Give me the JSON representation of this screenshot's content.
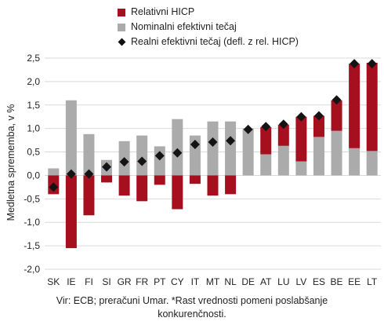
{
  "colors": {
    "relative": "#a50f1e",
    "nominal": "#ababab",
    "real": "#141414",
    "grid": "#d9d9d9"
  },
  "legend": {
    "relative": "Relativni HICP",
    "nominal": "Nominalni efektivni tečaj",
    "real": "Realni efektivni tečaj (defl. z rel. HICP)"
  },
  "note": {
    "line1": "Vir: ECB; preračuni Umar. *Rast vrednosti pomeni poslabšanje",
    "line2": "konkurenčnosti."
  },
  "chart_data": {
    "type": "bar",
    "stacked": true,
    "ylabel": "Medletna sprememba, v %",
    "xlabel": "",
    "ylim": [
      -2.0,
      2.5
    ],
    "yticks": [
      -2.0,
      -1.5,
      -1.0,
      -0.5,
      0.0,
      0.5,
      1.0,
      1.5,
      2.0,
      2.5
    ],
    "ytick_labels": [
      "-2,0",
      "-1,5",
      "-1,0",
      "-0,5",
      "0,0",
      "0,5",
      "1,0",
      "1,5",
      "2,0",
      "2,5"
    ],
    "grid": true,
    "legend_position": "top",
    "categories": [
      "SK",
      "IE",
      "FI",
      "SI",
      "GR",
      "FR",
      "PT",
      "CY",
      "IT",
      "MT",
      "NL",
      "DE",
      "AT",
      "LU",
      "LV",
      "ES",
      "BE",
      "EE",
      "LT"
    ],
    "series": [
      {
        "name": "Relativni HICP",
        "kind": "bar",
        "values": [
          -0.4,
          -1.55,
          -0.85,
          -0.15,
          -0.43,
          -0.55,
          -0.2,
          -0.72,
          -0.18,
          -0.43,
          -0.4,
          0.0,
          0.58,
          0.45,
          0.95,
          0.45,
          0.65,
          1.8,
          1.88
        ]
      },
      {
        "name": "Nominalni efektivni tečaj",
        "kind": "bar",
        "values": [
          0.15,
          1.6,
          0.88,
          0.33,
          0.73,
          0.85,
          0.62,
          1.2,
          0.85,
          1.15,
          1.15,
          1.0,
          0.45,
          0.63,
          0.3,
          0.82,
          0.95,
          0.58,
          0.52
        ]
      },
      {
        "name": "Realni efektivni tečaj (defl. z rel. HICP)",
        "kind": "marker",
        "values": [
          -0.25,
          0.03,
          0.03,
          0.18,
          0.29,
          0.3,
          0.42,
          0.48,
          0.66,
          0.71,
          0.74,
          0.98,
          1.04,
          1.09,
          1.25,
          1.27,
          1.61,
          2.38,
          2.38
        ]
      }
    ]
  }
}
